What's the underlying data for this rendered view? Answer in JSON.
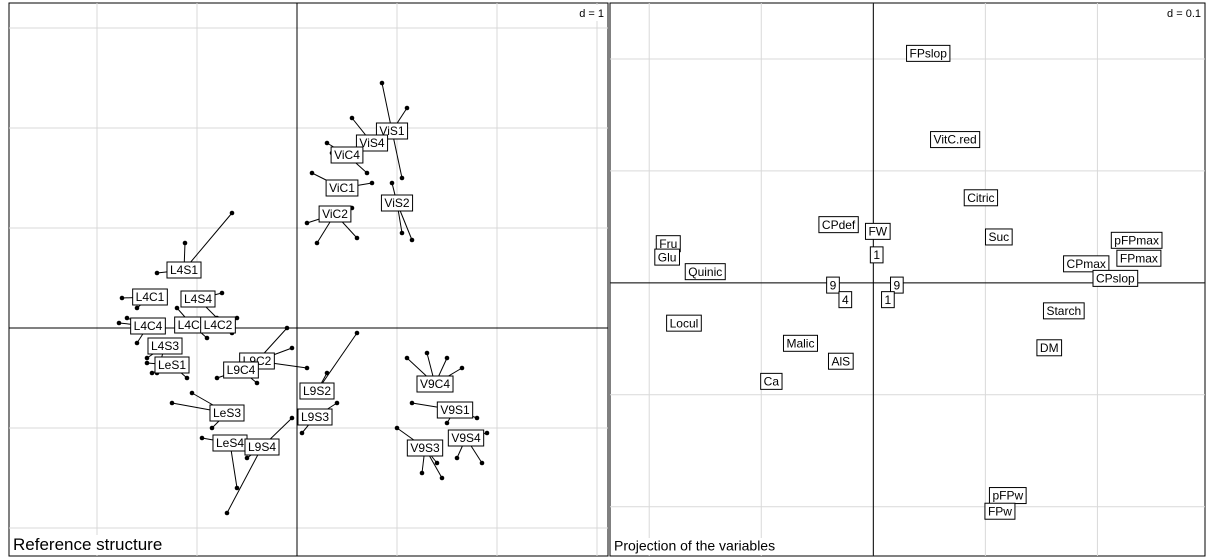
{
  "chart_data": [
    {
      "type": "star",
      "title": "Reference structure",
      "d_label": "d = 1",
      "xlim": [
        -2.88,
        3.11
      ],
      "ylim": [
        -2.28,
        3.25
      ],
      "xticks": [
        -2,
        -1,
        0,
        1,
        2,
        3
      ],
      "yticks": [
        -2,
        -1,
        0,
        1,
        2,
        3
      ],
      "grid": true,
      "groups": [
        {
          "label": "ViS1",
          "x": 0.95,
          "y": 1.97,
          "px": [
            0.85,
            1.1,
            1.05
          ],
          "py": [
            2.45,
            2.2,
            1.5
          ]
        },
        {
          "label": "ViS4",
          "x": 0.75,
          "y": 1.85,
          "px": [
            0.55,
            0.35,
            0.9
          ],
          "py": [
            2.1,
            1.75,
            1.95
          ]
        },
        {
          "label": "ViC4",
          "x": 0.5,
          "y": 1.73,
          "px": [
            0.3,
            0.7
          ],
          "py": [
            1.85,
            1.55
          ]
        },
        {
          "label": "ViC1",
          "x": 0.45,
          "y": 1.4,
          "px": [
            0.15,
            0.75
          ],
          "py": [
            1.55,
            1.45
          ]
        },
        {
          "label": "ViS2",
          "x": 1.0,
          "y": 1.25,
          "px": [
            1.05,
            1.15,
            0.95
          ],
          "py": [
            0.95,
            0.88,
            1.45
          ]
        },
        {
          "label": "ViC2",
          "x": 0.38,
          "y": 1.14,
          "px": [
            0.1,
            0.2,
            0.6,
            0.55
          ],
          "py": [
            1.05,
            0.85,
            0.9,
            1.2
          ]
        },
        {
          "label": "L4S1",
          "x": -1.13,
          "y": 0.58,
          "px": [
            -1.12,
            -0.65,
            -1.4
          ],
          "py": [
            0.85,
            1.15,
            0.55
          ]
        },
        {
          "label": "L4C1",
          "x": -1.47,
          "y": 0.31,
          "px": [
            -1.75,
            -1.6
          ],
          "py": [
            0.3,
            0.2
          ]
        },
        {
          "label": "L4S4",
          "x": -0.99,
          "y": 0.29,
          "px": [
            -0.75,
            -0.8
          ],
          "py": [
            0.35,
            0.1
          ]
        },
        {
          "label": "L4C4",
          "x": -1.49,
          "y": 0.02,
          "px": [
            -1.78,
            -1.6,
            -1.7
          ],
          "py": [
            0.05,
            -0.15,
            0.1
          ]
        },
        {
          "label": "L4C3",
          "x": -1.05,
          "y": 0.03,
          "px": [
            -1.2,
            -0.9
          ],
          "py": [
            0.2,
            -0.1
          ]
        },
        {
          "label": "L4C2",
          "x": -0.79,
          "y": 0.03,
          "px": [
            -0.6,
            -0.65
          ],
          "py": [
            0.1,
            -0.05
          ]
        },
        {
          "label": "L4S3",
          "x": -1.32,
          "y": -0.18,
          "px": [
            -1.4,
            -1.5
          ],
          "py": [
            -0.45,
            -0.3
          ]
        },
        {
          "label": "LeS1",
          "x": -1.25,
          "y": -0.37,
          "px": [
            -1.45,
            -1.1,
            -1.5
          ],
          "py": [
            -0.45,
            -0.5,
            -0.35
          ]
        },
        {
          "label": "L9C2",
          "x": -0.4,
          "y": -0.33,
          "px": [
            -0.1,
            -0.05,
            0.1
          ],
          "py": [
            0.0,
            -0.2,
            -0.4
          ]
        },
        {
          "label": "L9C4",
          "x": -0.56,
          "y": -0.42,
          "px": [
            -0.8,
            -0.4
          ],
          "py": [
            -0.5,
            -0.55
          ]
        },
        {
          "label": "L9S2",
          "x": 0.2,
          "y": -0.63,
          "px": [
            0.6,
            0.3,
            0.1
          ],
          "py": [
            -0.05,
            -0.45,
            -0.6
          ]
        },
        {
          "label": "V9C4",
          "x": 1.38,
          "y": -0.56,
          "px": [
            1.1,
            1.3,
            1.5,
            1.65
          ],
          "py": [
            -0.3,
            -0.25,
            -0.3,
            -0.4
          ]
        },
        {
          "label": "V9S1",
          "x": 1.58,
          "y": -0.82,
          "px": [
            1.15,
            1.8,
            1.5
          ],
          "py": [
            -0.75,
            -0.9,
            -0.95
          ]
        },
        {
          "label": "L9S3",
          "x": 0.18,
          "y": -0.89,
          "px": [
            0.4,
            0.05
          ],
          "py": [
            -0.75,
            -1.05
          ]
        },
        {
          "label": "LeS3",
          "x": -0.7,
          "y": -0.85,
          "px": [
            -1.05,
            -1.25,
            -0.85
          ],
          "py": [
            -0.65,
            -0.75,
            -1.0
          ]
        },
        {
          "label": "V9S4",
          "x": 1.69,
          "y": -1.1,
          "px": [
            1.9,
            1.85,
            1.6
          ],
          "py": [
            -1.05,
            -1.35,
            -1.3
          ]
        },
        {
          "label": "V9S3",
          "x": 1.28,
          "y": -1.2,
          "px": [
            1.0,
            1.25,
            1.4,
            1.45
          ],
          "py": [
            -1.0,
            -1.45,
            -1.35,
            -1.5
          ]
        },
        {
          "label": "LeS4",
          "x": -0.67,
          "y": -1.15,
          "px": [
            -0.95,
            -0.6
          ],
          "py": [
            -1.1,
            -1.6
          ]
        },
        {
          "label": "L9S4",
          "x": -0.35,
          "y": -1.19,
          "px": [
            -0.5,
            -0.7,
            -0.05
          ],
          "py": [
            -1.3,
            -1.85,
            -0.9
          ]
        }
      ]
    },
    {
      "type": "labels",
      "title": "Projection of the variables",
      "d_label": "d = 0.1",
      "xlim": [
        -0.235,
        0.296
      ],
      "ylim": [
        -0.244,
        0.25
      ],
      "xticks": [
        -0.2,
        -0.1,
        0,
        0.1,
        0.2
      ],
      "yticks": [
        -0.2,
        -0.1,
        0,
        0.1,
        0.2
      ],
      "grid": true,
      "groups": [
        {
          "label": "FPslop",
          "x": 0.049,
          "y": 0.205
        },
        {
          "label": "VitC.red",
          "x": 0.073,
          "y": 0.128
        },
        {
          "label": "Citric",
          "x": 0.096,
          "y": 0.076
        },
        {
          "label": "CPdef",
          "x": -0.031,
          "y": 0.052
        },
        {
          "label": "FW",
          "x": 0.004,
          "y": 0.046
        },
        {
          "label": "Suc",
          "x": 0.112,
          "y": 0.041
        },
        {
          "label": "pFPmax",
          "x": 0.235,
          "y": 0.038
        },
        {
          "label": "FPmax",
          "x": 0.237,
          "y": 0.022
        },
        {
          "label": "CPmax",
          "x": 0.19,
          "y": 0.017
        },
        {
          "label": "CPslop",
          "x": 0.216,
          "y": 0.004
        },
        {
          "label": "Fru",
          "x": -0.183,
          "y": 0.035
        },
        {
          "label": "Glu",
          "x": -0.184,
          "y": 0.023
        },
        {
          "label": "Quinic",
          "x": -0.15,
          "y": 0.01
        },
        {
          "label": "1",
          "x": 0.003,
          "y": 0.025
        },
        {
          "label": "9",
          "x": -0.036,
          "y": -0.002
        },
        {
          "label": "4",
          "x": -0.025,
          "y": -0.015
        },
        {
          "label": "9",
          "x": 0.021,
          "y": -0.002
        },
        {
          "label": "1",
          "x": 0.013,
          "y": -0.015
        },
        {
          "label": "Starch",
          "x": 0.17,
          "y": -0.025
        },
        {
          "label": "Locul",
          "x": -0.169,
          "y": -0.036
        },
        {
          "label": "DM",
          "x": 0.157,
          "y": -0.058
        },
        {
          "label": "Malic",
          "x": -0.065,
          "y": -0.054
        },
        {
          "label": "AlS",
          "x": -0.029,
          "y": -0.07
        },
        {
          "label": "Ca",
          "x": -0.091,
          "y": -0.088
        },
        {
          "label": "pFPw",
          "x": 0.12,
          "y": -0.19
        },
        {
          "label": "FPw",
          "x": 0.113,
          "y": -0.204
        }
      ]
    }
  ]
}
